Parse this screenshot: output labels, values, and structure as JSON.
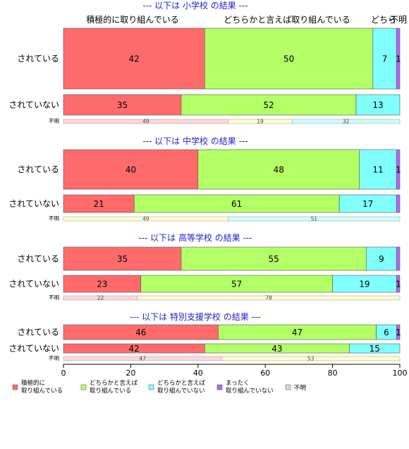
{
  "chart_data": {
    "type": "bar",
    "orientation": "horizontal",
    "stacked": true,
    "xlim": [
      0,
      100
    ],
    "xticks": [
      0,
      20,
      40,
      60,
      80,
      100
    ],
    "top_headers": [
      "積極的に取り組んでいる",
      "どちらかと言えば取り組んでいる",
      "どちら",
      "不明"
    ],
    "legend": [
      {
        "label": "積極的に\n取り組んでいる",
        "color": "#ff6b6b"
      },
      {
        "label": "どちらかと言えば\n取り組んでいる",
        "color": "#b3ff66"
      },
      {
        "label": "どちらかと言えば\n取り組んでいない",
        "color": "#80ffff"
      },
      {
        "label": "まったく\n取り組んでいない",
        "color": "#b366ff"
      },
      {
        "label": "不明",
        "color": "#d9d9d9"
      }
    ],
    "unknown_colors": [
      "#ffd6dc",
      "#ffffcc",
      "#ccffff"
    ],
    "panels": [
      {
        "title": "--- 以下は 小学校 の結果 ---",
        "rows": [
          {
            "label": "されている",
            "values": [
              42,
              50,
              7,
              1,
              0
            ],
            "labels": [
              "42",
              "50",
              "7",
              "1",
              ""
            ]
          },
          {
            "label": "されていない",
            "values": [
              35,
              52,
              13,
              0,
              0
            ],
            "labels": [
              "35",
              "52",
              "13",
              "",
              ""
            ]
          }
        ],
        "unknown": {
          "label": "不明",
          "values": [
            49,
            19,
            32
          ],
          "labels": [
            "49",
            "19",
            "32"
          ]
        }
      },
      {
        "title": "--- 以下は 中学校 の結果 ---",
        "rows": [
          {
            "label": "されている",
            "values": [
              40,
              48,
              11,
              1,
              0
            ],
            "labels": [
              "40",
              "48",
              "11",
              "1",
              ""
            ]
          },
          {
            "label": "されていない",
            "values": [
              21,
              61,
              17,
              1,
              0
            ],
            "labels": [
              "21",
              "61",
              "17",
              "",
              ""
            ]
          }
        ],
        "unknown": {
          "label": "不明",
          "values": [
            0,
            49,
            51
          ],
          "labels": [
            "",
            "49",
            "51"
          ]
        }
      },
      {
        "title": "--- 以下は 高等学校 の結果 ---",
        "rows": [
          {
            "label": "されている",
            "values": [
              35,
              55,
              9,
              1,
              0
            ],
            "labels": [
              "35",
              "55",
              "9",
              "",
              ""
            ]
          },
          {
            "label": "されていない",
            "values": [
              23,
              57,
              19,
              1,
              0
            ],
            "labels": [
              "23",
              "57",
              "19",
              "1",
              ""
            ]
          }
        ],
        "unknown": {
          "label": "不明",
          "values": [
            22,
            78,
            0
          ],
          "labels": [
            "22",
            "78",
            ""
          ]
        }
      },
      {
        "title": "--- 以下は 特別支援学校 の結果 ---",
        "rows": [
          {
            "label": "されている",
            "values": [
              46,
              47,
              6,
              1,
              0
            ],
            "labels": [
              "46",
              "47",
              "6",
              "1",
              ""
            ]
          },
          {
            "label": "されていない",
            "values": [
              42,
              43,
              15,
              0,
              0
            ],
            "labels": [
              "42",
              "43",
              "15",
              "",
              ""
            ]
          }
        ],
        "unknown": {
          "label": "不明",
          "values": [
            47,
            53,
            0
          ],
          "labels": [
            "47",
            "53",
            ""
          ]
        }
      }
    ]
  }
}
